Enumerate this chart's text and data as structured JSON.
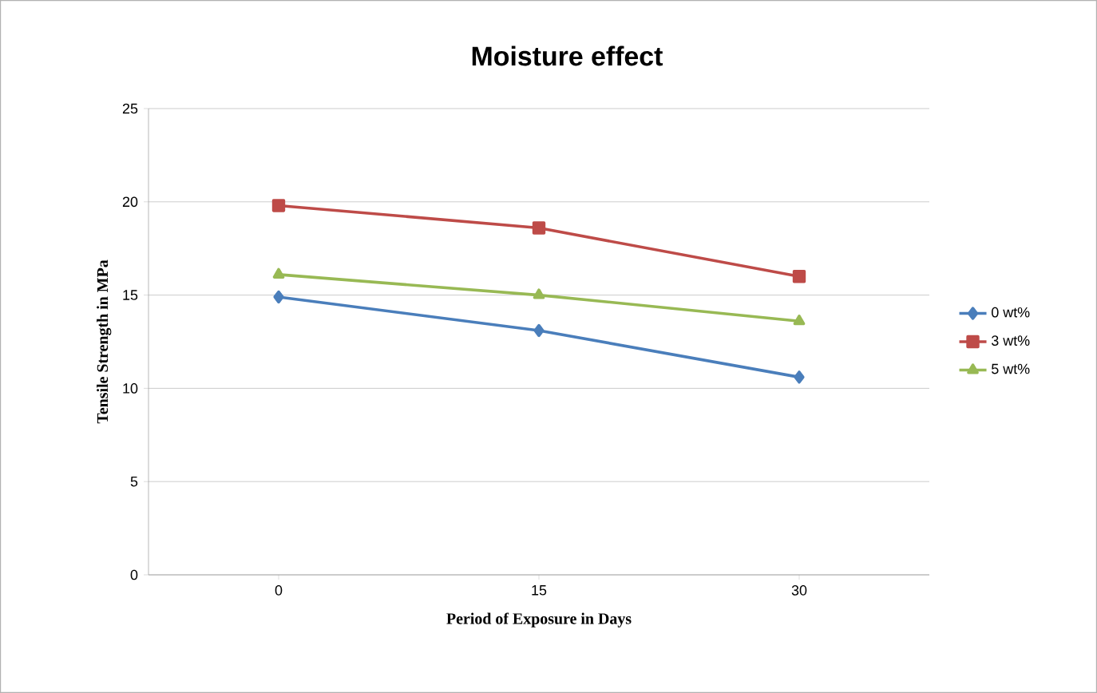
{
  "chart_data": {
    "type": "line",
    "title": "Moisture effect",
    "xlabel": "Period of Exposure in Days",
    "ylabel": "Tensile Strength in MPa",
    "categories": [
      "0",
      "15",
      "30"
    ],
    "series": [
      {
        "name": "0 wt%",
        "color": "#4a7ebb",
        "marker": "diamond",
        "values": [
          14.9,
          13.1,
          10.6
        ]
      },
      {
        "name": "3 wt%",
        "color": "#be4b48",
        "marker": "square",
        "values": [
          19.8,
          18.6,
          16.0
        ]
      },
      {
        "name": "5 wt%",
        "color": "#98b954",
        "marker": "triangle",
        "values": [
          16.1,
          15.0,
          13.6
        ]
      }
    ],
    "ylim": [
      0,
      25
    ],
    "yticks": [
      0,
      5,
      10,
      15,
      20,
      25
    ],
    "grid": "y",
    "legend": "right",
    "line_style": "solid"
  }
}
